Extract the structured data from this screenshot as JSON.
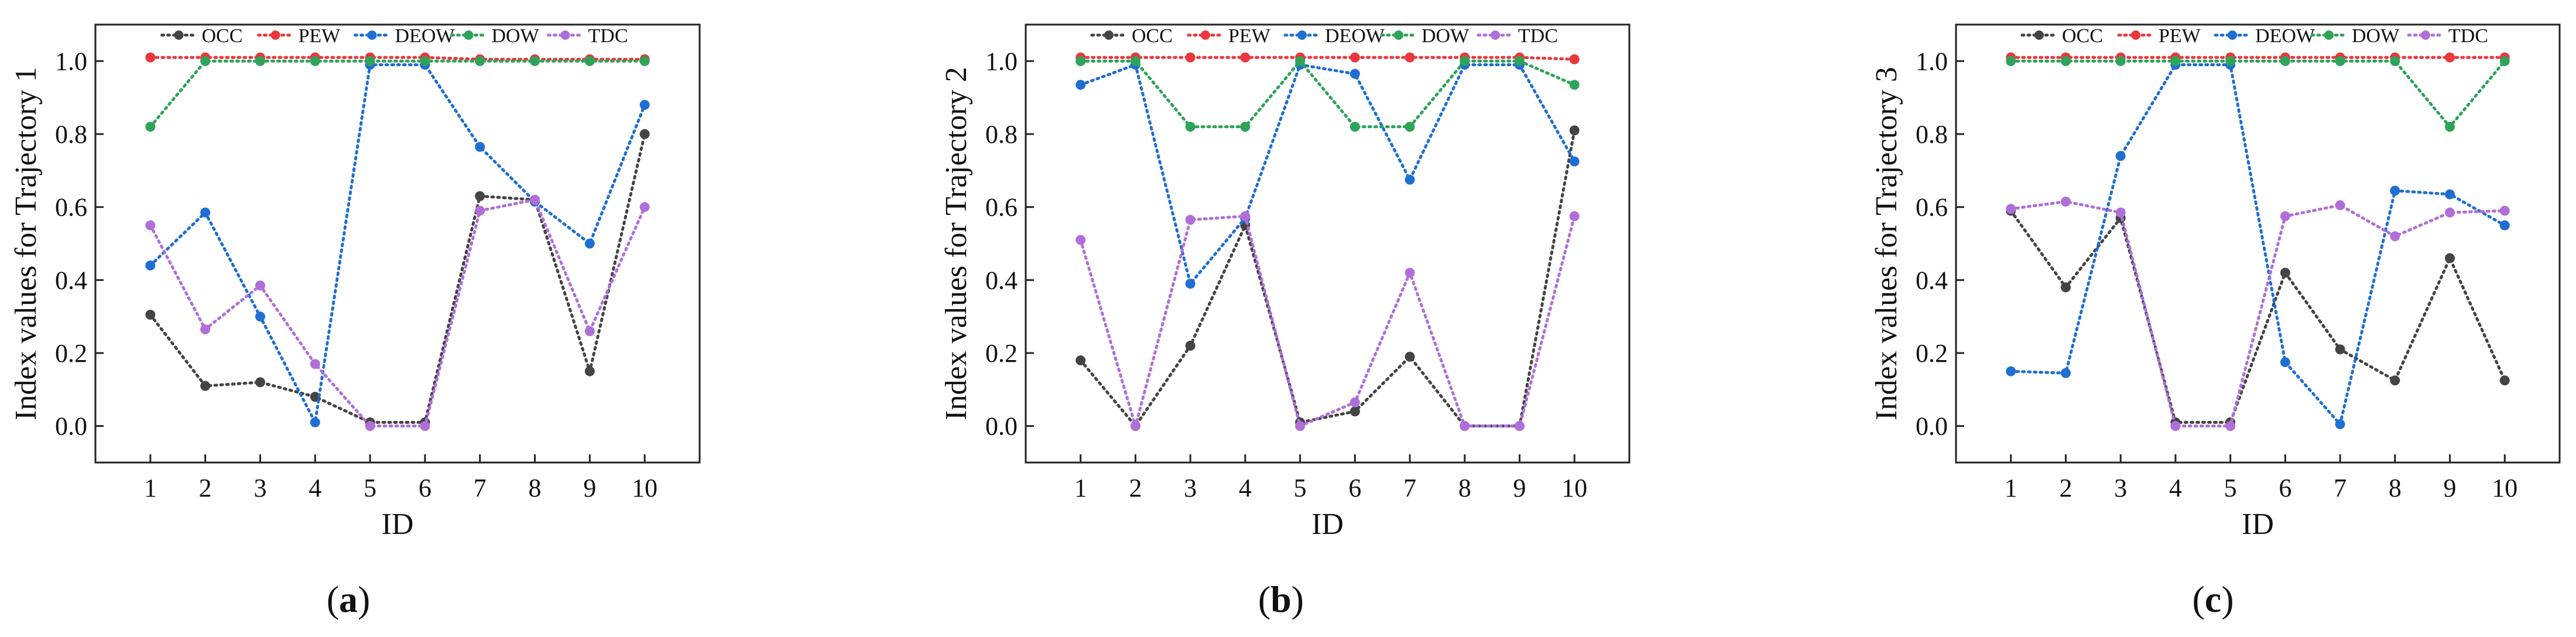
{
  "figure": {
    "captions": [
      {
        "open": "(",
        "letter": "a",
        "close": ")"
      },
      {
        "open": "(",
        "letter": "b",
        "close": ")"
      },
      {
        "open": "(",
        "letter": "c",
        "close": ")"
      }
    ]
  },
  "chart_data": [
    {
      "type": "line",
      "title": "",
      "xlabel": "ID",
      "ylabel": "Index values for Trajectory 1",
      "x": [
        1,
        2,
        3,
        4,
        5,
        6,
        7,
        8,
        9,
        10
      ],
      "xlim": [
        0,
        11
      ],
      "ylim": [
        -0.1,
        1.1
      ],
      "yticks": [
        0.0,
        0.2,
        0.4,
        0.6,
        0.8,
        1.0
      ],
      "ytick_labels": [
        "0.0",
        "0.2",
        "0.4",
        "0.6",
        "0.8",
        "1.0"
      ],
      "legend_position": "top",
      "grid": false,
      "series": [
        {
          "name": "OCC",
          "color": "#444444",
          "values": [
            0.305,
            0.11,
            0.12,
            0.08,
            0.01,
            0.01,
            0.63,
            0.62,
            0.15,
            0.8
          ]
        },
        {
          "name": "PEW",
          "color": "#e8383d",
          "values": [
            1.01,
            1.01,
            1.01,
            1.01,
            1.01,
            1.01,
            1.005,
            1.005,
            1.005,
            1.005
          ]
        },
        {
          "name": "DEOW",
          "color": "#1f6fd1",
          "values": [
            0.44,
            0.585,
            0.3,
            0.01,
            0.99,
            0.99,
            0.765,
            0.615,
            0.5,
            0.88
          ]
        },
        {
          "name": "DOW",
          "color": "#2ea35a",
          "values": [
            0.82,
            1.0,
            1.0,
            1.0,
            1.0,
            1.0,
            1.0,
            1.0,
            1.0,
            1.0
          ]
        },
        {
          "name": "TDC",
          "color": "#b06fd8",
          "values": [
            0.55,
            0.265,
            0.385,
            0.17,
            0.0,
            0.0,
            0.59,
            0.62,
            0.26,
            0.6
          ]
        }
      ]
    },
    {
      "type": "line",
      "title": "",
      "xlabel": "ID",
      "ylabel": "Index values for Trajectory 2",
      "x": [
        1,
        2,
        3,
        4,
        5,
        6,
        7,
        8,
        9,
        10
      ],
      "xlim": [
        0,
        11
      ],
      "ylim": [
        -0.1,
        1.1
      ],
      "yticks": [
        0.0,
        0.2,
        0.4,
        0.6,
        0.8,
        1.0
      ],
      "ytick_labels": [
        "0.0",
        "0.2",
        "0.4",
        "0.6",
        "0.8",
        "1.0"
      ],
      "legend_position": "top",
      "grid": false,
      "series": [
        {
          "name": "OCC",
          "color": "#444444",
          "values": [
            0.18,
            0.0,
            0.22,
            0.55,
            0.01,
            0.04,
            0.19,
            0.0,
            0.0,
            0.81
          ]
        },
        {
          "name": "PEW",
          "color": "#e8383d",
          "values": [
            1.01,
            1.01,
            1.01,
            1.01,
            1.01,
            1.01,
            1.01,
            1.01,
            1.01,
            1.005
          ]
        },
        {
          "name": "DEOW",
          "color": "#1f6fd1",
          "values": [
            0.935,
            0.99,
            0.39,
            0.57,
            0.99,
            0.965,
            0.675,
            0.99,
            0.99,
            0.725
          ]
        },
        {
          "name": "DOW",
          "color": "#2ea35a",
          "values": [
            1.0,
            1.0,
            0.82,
            0.82,
            1.0,
            0.82,
            0.82,
            1.0,
            1.0,
            0.935
          ]
        },
        {
          "name": "TDC",
          "color": "#b06fd8",
          "values": [
            0.51,
            0.0,
            0.565,
            0.575,
            0.0,
            0.065,
            0.42,
            0.0,
            0.0,
            0.575
          ]
        }
      ]
    },
    {
      "type": "line",
      "title": "",
      "xlabel": "ID",
      "ylabel": "Index values for Trajectory 3",
      "x": [
        1,
        2,
        3,
        4,
        5,
        6,
        7,
        8,
        9,
        10
      ],
      "xlim": [
        0,
        11
      ],
      "ylim": [
        -0.1,
        1.1
      ],
      "yticks": [
        0.0,
        0.2,
        0.4,
        0.6,
        0.8,
        1.0
      ],
      "ytick_labels": [
        "0.0",
        "0.2",
        "0.4",
        "0.6",
        "0.8",
        "1.0"
      ],
      "legend_position": "top",
      "grid": false,
      "series": [
        {
          "name": "OCC",
          "color": "#444444",
          "values": [
            0.59,
            0.38,
            0.57,
            0.01,
            0.01,
            0.42,
            0.21,
            0.125,
            0.46,
            0.125
          ]
        },
        {
          "name": "PEW",
          "color": "#e8383d",
          "values": [
            1.01,
            1.01,
            1.01,
            1.01,
            1.01,
            1.01,
            1.01,
            1.01,
            1.01,
            1.01
          ]
        },
        {
          "name": "DEOW",
          "color": "#1f6fd1",
          "values": [
            0.15,
            0.145,
            0.74,
            0.99,
            0.99,
            0.175,
            0.005,
            0.645,
            0.635,
            0.55
          ]
        },
        {
          "name": "DOW",
          "color": "#2ea35a",
          "values": [
            1.0,
            1.0,
            1.0,
            1.0,
            1.0,
            1.0,
            1.0,
            1.0,
            0.82,
            1.0
          ]
        },
        {
          "name": "TDC",
          "color": "#b06fd8",
          "values": [
            0.595,
            0.615,
            0.585,
            0.0,
            0.0,
            0.575,
            0.605,
            0.52,
            0.585,
            0.59
          ]
        }
      ]
    }
  ]
}
